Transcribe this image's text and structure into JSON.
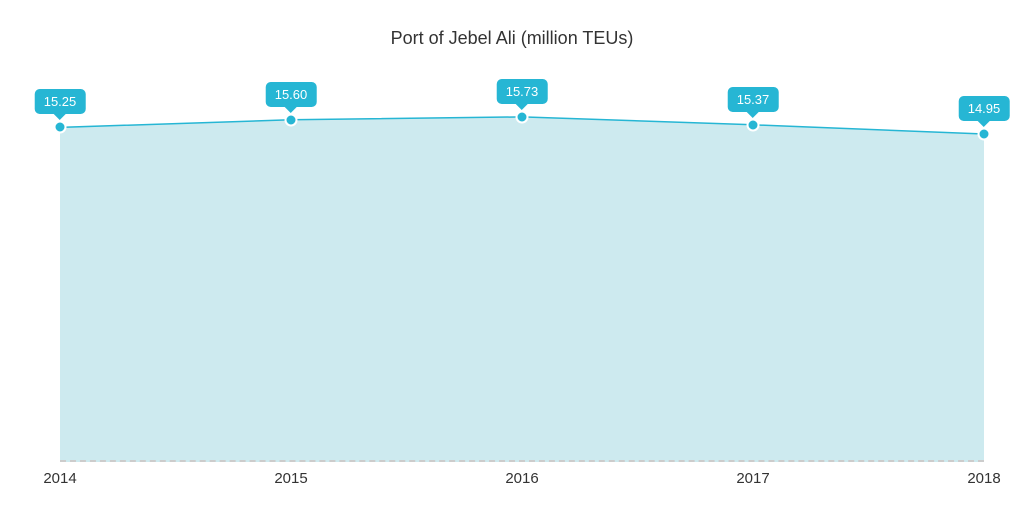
{
  "chart": {
    "type": "area",
    "title": "Port of Jebel Ali (million TEUs)",
    "title_fontsize": 18,
    "title_color": "#333333",
    "background_color": "#ffffff",
    "area_fill": "#cdeaef",
    "line_color": "#26b6d4",
    "line_width": 1.5,
    "marker_color": "#26b6d4",
    "marker_border": "#ffffff",
    "marker_size": 9,
    "tooltip_bg": "#26b6d4",
    "tooltip_text_color": "#ffffff",
    "tooltip_fontsize": 13,
    "xlabel_color": "#333333",
    "xlabel_fontsize": 15,
    "baseline_color": "#cccccc",
    "ylim": [
      0,
      16.5
    ],
    "categories": [
      "2014",
      "2015",
      "2016",
      "2017",
      "2018"
    ],
    "values": [
      15.25,
      15.6,
      15.73,
      15.37,
      14.95
    ],
    "value_labels": [
      "15.25",
      "15.60",
      "15.73",
      "15.37",
      "14.95"
    ]
  }
}
